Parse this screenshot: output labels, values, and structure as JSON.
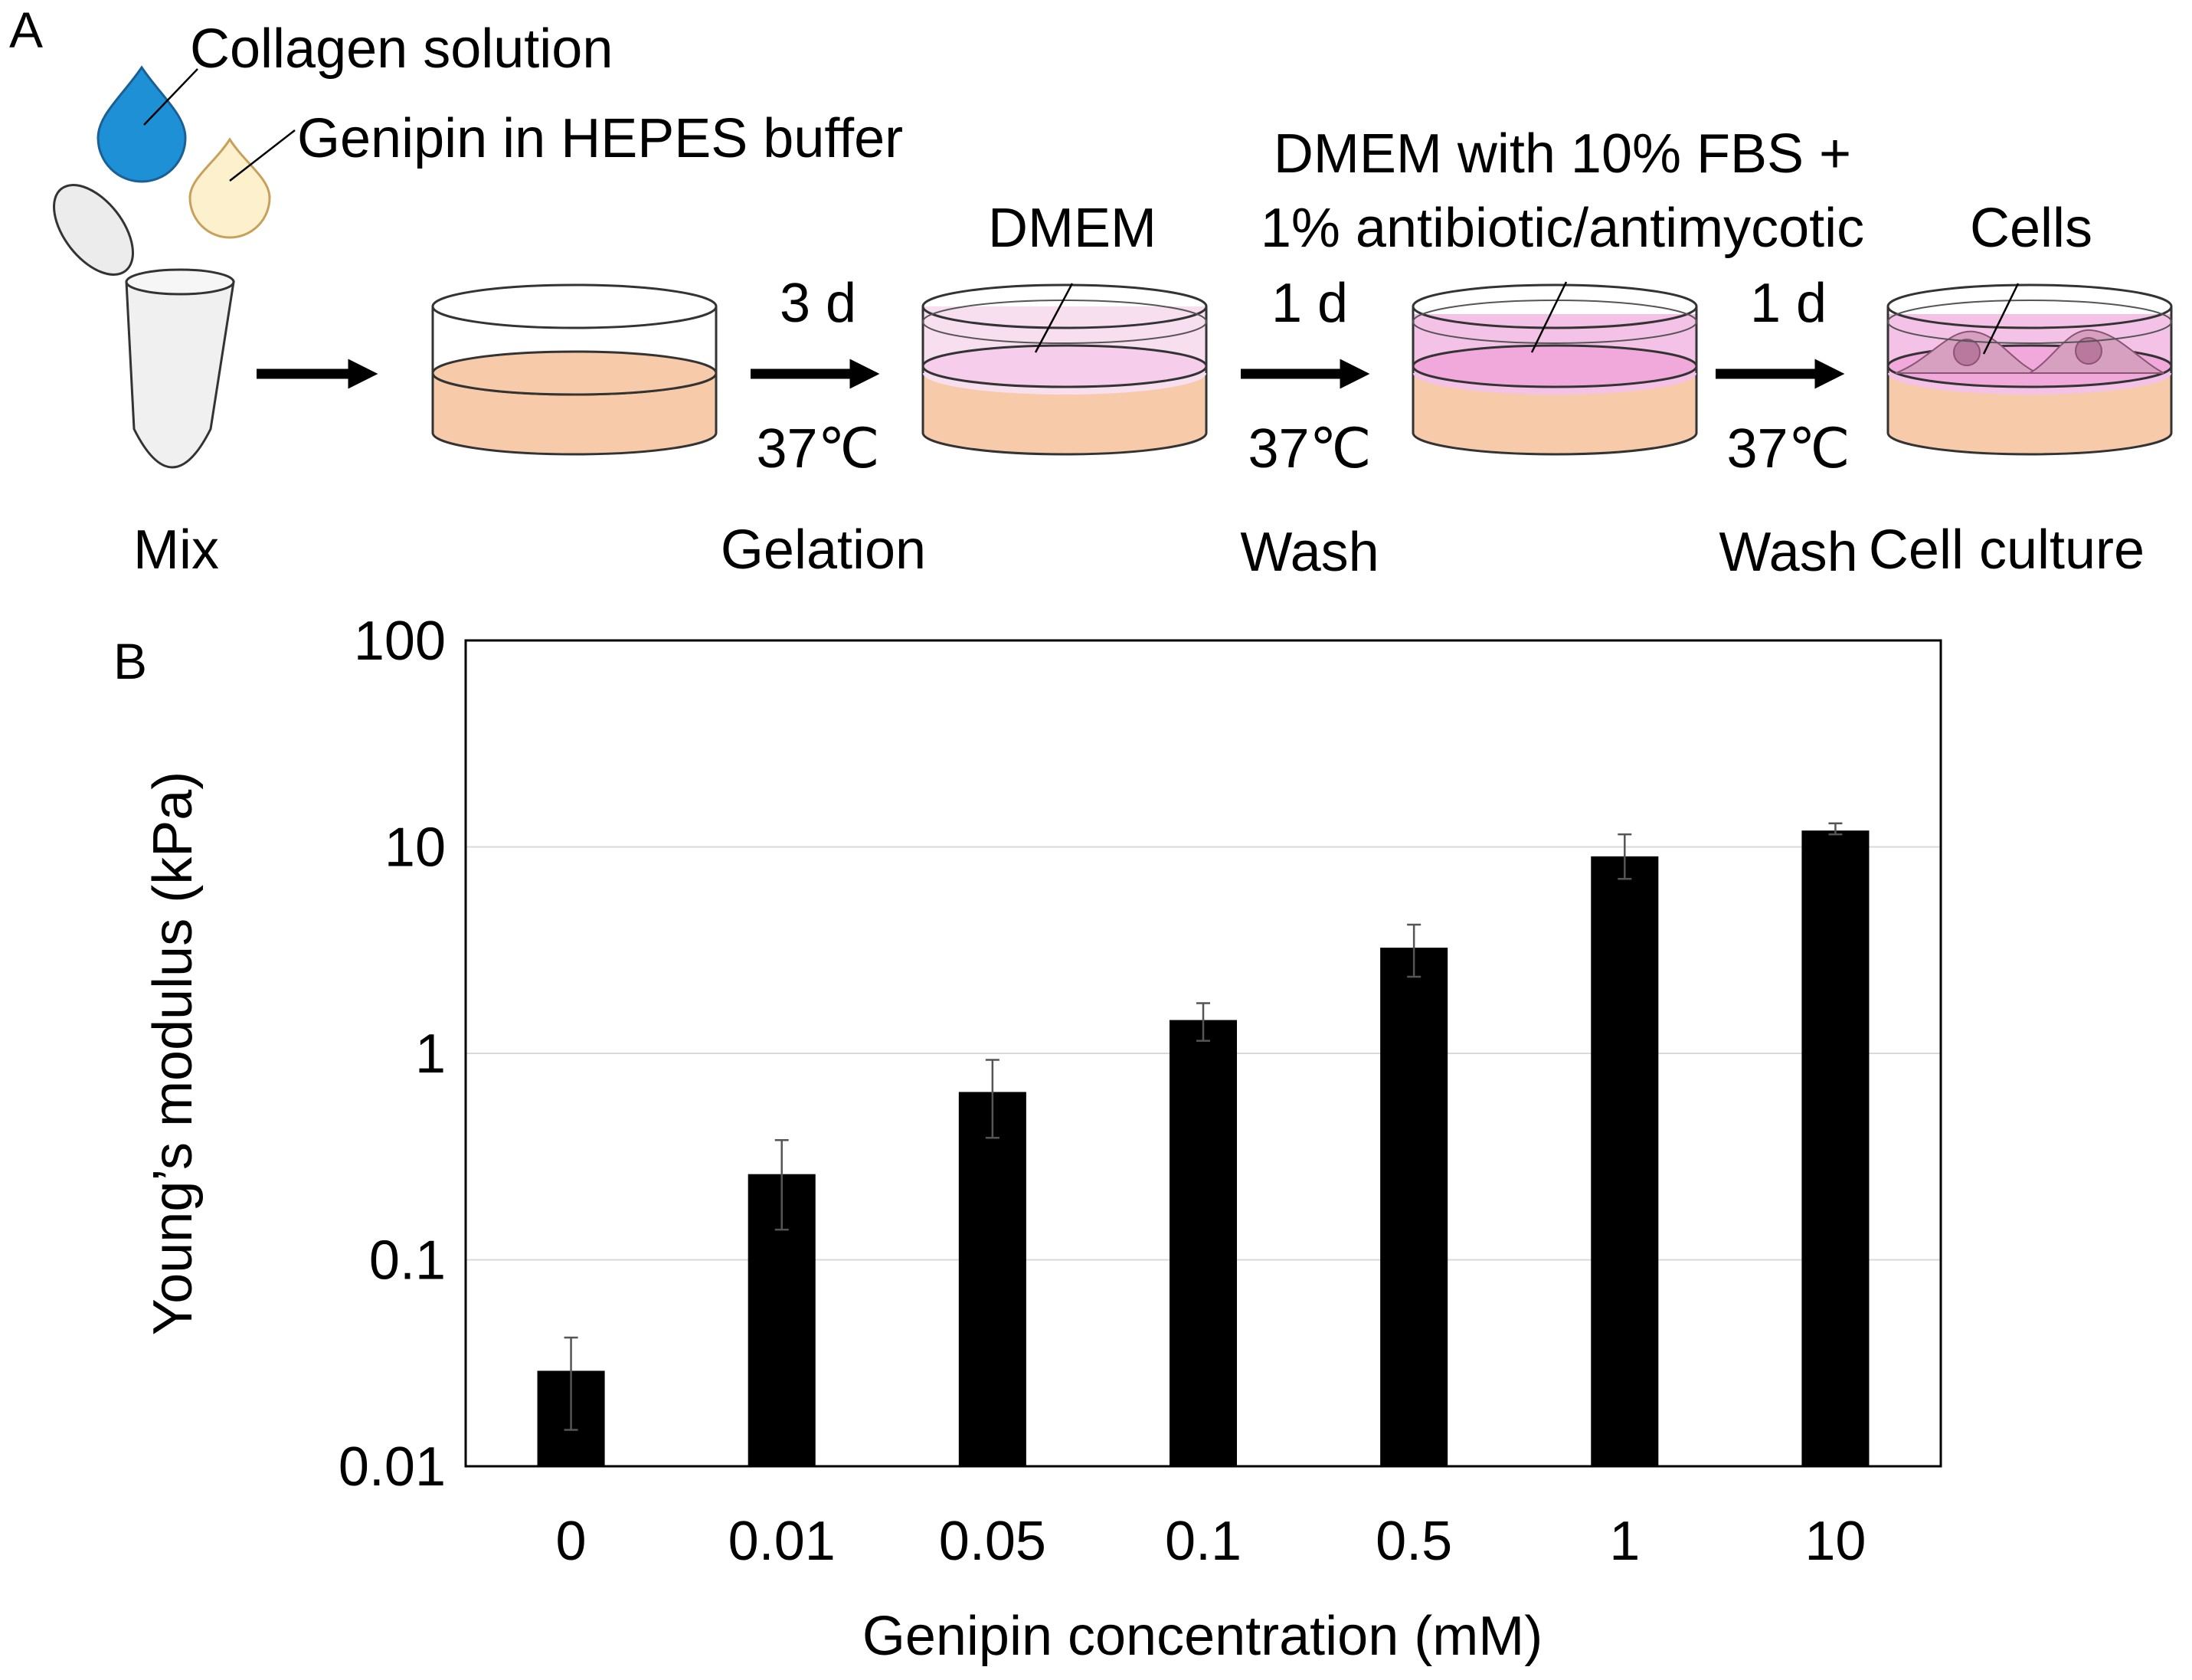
{
  "panel_a": {
    "label": "A",
    "inputs": {
      "collagen": "Collagen solution",
      "genipin": "Genipin in HEPES buffer"
    },
    "layer_labels": {
      "dmem": "DMEM",
      "dmem_fbs_line1": "DMEM with 10% FBS +",
      "dmem_fbs_line2": "1% antibiotic/antimycotic",
      "cells": "Cells"
    },
    "steps": [
      {
        "duration": "3 d",
        "temperature": "37℃"
      },
      {
        "duration": "1 d",
        "temperature": "37℃"
      },
      {
        "duration": "1 d",
        "temperature": "37℃"
      }
    ],
    "stage_labels": {
      "mix": "Mix",
      "gelation": "Gelation",
      "wash1": "Wash",
      "wash2": "Wash",
      "cell_culture": "Cell culture"
    },
    "colors": {
      "collagen_drop": "#1e90d6",
      "genipin_drop": "#fdf0cd",
      "gel": "#f7cba9",
      "dmem": "#f6cdea",
      "dmem_fbs": "#f1a9dc",
      "cell": "#d7a0c0",
      "nucleus": "#b9789d"
    }
  },
  "chart_data": {
    "panel_label": "B",
    "type": "bar",
    "categories": [
      "0",
      "0.01",
      "0.05",
      "0.1",
      "0.5",
      "1",
      "10"
    ],
    "values": [
      0.029,
      0.26,
      0.65,
      1.45,
      3.25,
      9.0,
      12.0
    ],
    "error_high": [
      0.042,
      0.38,
      0.93,
      1.75,
      4.2,
      11.5,
      13.0
    ],
    "error_low": [
      0.015,
      0.14,
      0.39,
      1.15,
      2.35,
      7.0,
      11.5
    ],
    "ylabel": "Young’s modulus (kPa)",
    "xlabel": "Genipin concentration (mM)",
    "yscale": "log",
    "ylim": [
      0.01,
      100
    ],
    "yticks": [
      "0.01",
      "0.1",
      "1",
      "10",
      "100"
    ],
    "grid": true,
    "bar_color": "#000000"
  }
}
